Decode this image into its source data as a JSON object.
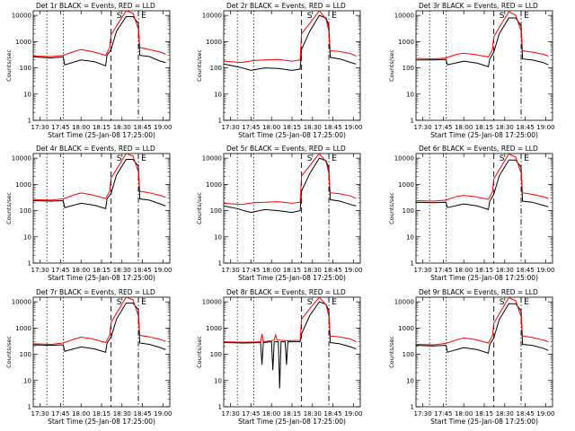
{
  "figure": {
    "type": "grid",
    "rows": 3,
    "cols": 3
  },
  "shared": {
    "xlabel": "Start Time (25-Jan-08 17:25:00)",
    "ylabel": "Counts/sec",
    "x_ticks": [
      "17:30",
      "17:45",
      "18:00",
      "18:15",
      "18:30",
      "18:45",
      "19:00"
    ],
    "y_ticks": [
      "1",
      "10",
      "100",
      "1000",
      "10000"
    ],
    "xlim": [
      "17:25",
      "19:05"
    ],
    "ylim": [
      1,
      15000
    ],
    "yscale": "log",
    "markers": [
      "S",
      "E"
    ],
    "series_colors": {
      "events": "#000000",
      "lld": "#ff0000"
    },
    "vlines": [
      {
        "time": "17:35",
        "style": "dotted"
      },
      {
        "time": "17:47",
        "style": "dotted"
      },
      {
        "time": "18:22",
        "style": "dashed"
      },
      {
        "time": "18:42",
        "style": "dashdot"
      }
    ]
  },
  "chart_data": [
    {
      "type": "line",
      "title": "Det 1r BLACK = Events, RED = LLD",
      "series": [
        {
          "label": "BLACK",
          "x": [
            "17:25",
            "17:38",
            "17:47",
            "17:48",
            "18:00",
            "18:10",
            "18:18",
            "18:19",
            "18:22",
            "18:26",
            "18:33",
            "18:38",
            "18:42",
            "18:43",
            "18:50",
            "18:58",
            "19:02"
          ],
          "y": [
            260,
            240,
            260,
            130,
            200,
            170,
            120,
            300,
            500,
            2500,
            9000,
            9000,
            5000,
            300,
            270,
            180,
            160
          ]
        },
        {
          "label": "RED",
          "x": [
            "17:25",
            "17:38",
            "17:47",
            "17:55",
            "18:00",
            "18:08",
            "18:18",
            "18:21",
            "18:22",
            "18:26",
            "18:33",
            "18:38",
            "18:42",
            "18:43",
            "18:50",
            "18:58",
            "19:02"
          ],
          "y": [
            280,
            270,
            300,
            420,
            500,
            420,
            300,
            600,
            1800,
            4000,
            15000,
            12000,
            3000,
            600,
            500,
            400,
            330
          ]
        }
      ]
    },
    {
      "type": "line",
      "title": "Det 2r BLACK = Events, RED = LLD",
      "series": [
        {
          "label": "BLACK",
          "x": [
            "17:25",
            "17:35",
            "17:40",
            "17:45",
            "17:55",
            "18:05",
            "18:15",
            "18:21",
            "18:22",
            "18:28",
            "18:35",
            "18:40",
            "18:42",
            "18:43",
            "18:50",
            "18:58",
            "19:02"
          ],
          "y": [
            140,
            110,
            95,
            80,
            100,
            95,
            80,
            90,
            500,
            2500,
            10000,
            8000,
            4000,
            250,
            220,
            160,
            140
          ]
        },
        {
          "label": "RED",
          "x": [
            "17:25",
            "17:38",
            "17:47",
            "17:55",
            "18:05",
            "18:15",
            "18:21",
            "18:22",
            "18:28",
            "18:35",
            "18:40",
            "18:42",
            "18:43",
            "18:50",
            "18:58",
            "19:02"
          ],
          "y": [
            180,
            160,
            190,
            200,
            210,
            180,
            200,
            2000,
            5000,
            15000,
            7000,
            2500,
            450,
            420,
            350,
            280
          ]
        }
      ]
    },
    {
      "type": "line",
      "title": "Det 3r BLACK = Events, RED = LLD",
      "series": [
        {
          "label": "BLACK",
          "x": [
            "17:25",
            "17:38",
            "17:47",
            "17:48",
            "18:00",
            "18:10",
            "18:18",
            "18:19",
            "18:22",
            "18:26",
            "18:33",
            "18:38",
            "18:42",
            "18:43",
            "18:50",
            "18:58",
            "19:02"
          ],
          "y": [
            200,
            200,
            210,
            130,
            180,
            150,
            110,
            220,
            400,
            2000,
            8000,
            8000,
            4000,
            220,
            200,
            160,
            130
          ]
        },
        {
          "label": "RED",
          "x": [
            "17:25",
            "17:38",
            "17:47",
            "17:55",
            "18:00",
            "18:08",
            "18:18",
            "18:21",
            "18:22",
            "18:26",
            "18:33",
            "18:38",
            "18:42",
            "18:43",
            "18:50",
            "18:58",
            "19:02"
          ],
          "y": [
            230,
            220,
            240,
            330,
            360,
            320,
            260,
            500,
            1500,
            3500,
            14000,
            10000,
            2500,
            450,
            400,
            330,
            280
          ]
        }
      ]
    },
    {
      "type": "line",
      "title": "Det 4r BLACK = Events, RED = LLD",
      "series": [
        {
          "label": "BLACK",
          "x": [
            "17:25",
            "17:38",
            "17:47",
            "17:48",
            "18:00",
            "18:10",
            "18:18",
            "18:19",
            "18:22",
            "18:26",
            "18:33",
            "18:38",
            "18:42",
            "18:43",
            "18:50",
            "18:58",
            "19:02"
          ],
          "y": [
            240,
            230,
            240,
            130,
            190,
            160,
            120,
            280,
            450,
            2300,
            9000,
            9000,
            5000,
            280,
            250,
            180,
            150
          ]
        },
        {
          "label": "RED",
          "x": [
            "17:25",
            "17:38",
            "17:47",
            "17:55",
            "18:00",
            "18:08",
            "18:18",
            "18:21",
            "18:22",
            "18:26",
            "18:33",
            "18:38",
            "18:42",
            "18:43",
            "18:50",
            "18:58",
            "19:02"
          ],
          "y": [
            260,
            250,
            280,
            400,
            470,
            400,
            290,
            550,
            1700,
            3800,
            15000,
            12000,
            3000,
            550,
            480,
            380,
            320
          ]
        }
      ]
    },
    {
      "type": "line",
      "title": "Det 5r BLACK = Events, RED = LLD",
      "series": [
        {
          "label": "BLACK",
          "x": [
            "17:25",
            "17:35",
            "17:40",
            "17:45",
            "17:55",
            "18:05",
            "18:15",
            "18:21",
            "18:22",
            "18:28",
            "18:35",
            "18:40",
            "18:42",
            "18:43",
            "18:50",
            "18:58",
            "19:02"
          ],
          "y": [
            150,
            120,
            100,
            85,
            110,
            100,
            85,
            100,
            550,
            2600,
            10000,
            8000,
            4000,
            260,
            230,
            170,
            150
          ]
        },
        {
          "label": "RED",
          "x": [
            "17:25",
            "17:38",
            "17:47",
            "17:55",
            "18:05",
            "18:15",
            "18:21",
            "18:22",
            "18:28",
            "18:35",
            "18:40",
            "18:42",
            "18:43",
            "18:50",
            "18:58",
            "19:02"
          ],
          "y": [
            190,
            170,
            200,
            210,
            220,
            190,
            210,
            2100,
            5200,
            15000,
            7200,
            2600,
            480,
            440,
            360,
            290
          ]
        }
      ]
    },
    {
      "type": "line",
      "title": "Det 6r BLACK = Events, RED = LLD",
      "series": [
        {
          "label": "BLACK",
          "x": [
            "17:25",
            "17:38",
            "17:47",
            "17:48",
            "18:00",
            "18:10",
            "18:18",
            "18:19",
            "18:22",
            "18:26",
            "18:33",
            "18:38",
            "18:42",
            "18:43",
            "18:50",
            "18:58",
            "19:02"
          ],
          "y": [
            210,
            200,
            210,
            130,
            180,
            150,
            110,
            230,
            420,
            2100,
            8500,
            8500,
            4500,
            230,
            210,
            160,
            140
          ]
        },
        {
          "label": "RED",
          "x": [
            "17:25",
            "17:38",
            "17:47",
            "17:55",
            "18:00",
            "18:08",
            "18:18",
            "18:21",
            "18:22",
            "18:26",
            "18:33",
            "18:38",
            "18:42",
            "18:43",
            "18:50",
            "18:58",
            "19:02"
          ],
          "y": [
            240,
            230,
            250,
            350,
            380,
            340,
            270,
            520,
            1600,
            3600,
            14500,
            11000,
            2700,
            480,
            420,
            340,
            290
          ]
        }
      ]
    },
    {
      "type": "line",
      "title": "Det 7r BLACK = Events, RED = LLD",
      "series": [
        {
          "label": "BLACK",
          "x": [
            "17:25",
            "17:38",
            "17:47",
            "17:48",
            "18:00",
            "18:10",
            "18:18",
            "18:19",
            "18:22",
            "18:26",
            "18:33",
            "18:38",
            "18:42",
            "18:43",
            "18:50",
            "18:58",
            "19:02"
          ],
          "y": [
            230,
            220,
            230,
            130,
            190,
            160,
            120,
            270,
            450,
            2200,
            9000,
            9000,
            5000,
            270,
            240,
            180,
            150
          ]
        },
        {
          "label": "RED",
          "x": [
            "17:25",
            "17:38",
            "17:47",
            "17:55",
            "18:00",
            "18:08",
            "18:18",
            "18:21",
            "18:22",
            "18:26",
            "18:33",
            "18:38",
            "18:42",
            "18:43",
            "18:50",
            "18:58",
            "19:02"
          ],
          "y": [
            250,
            240,
            270,
            380,
            450,
            390,
            280,
            530,
            1600,
            3700,
            15000,
            12000,
            2900,
            530,
            460,
            370,
            310
          ]
        }
      ]
    },
    {
      "type": "line",
      "title": "Det 8r BLACK = Events, RED = LLD",
      "series": [
        {
          "label": "BLACK",
          "x": [
            "17:25",
            "17:40",
            "17:52",
            "17:53",
            "17:54",
            "18:00",
            "18:01",
            "18:02",
            "18:05",
            "18:06",
            "18:07",
            "18:10",
            "18:11",
            "18:12",
            "18:21",
            "18:22",
            "18:28",
            "18:35",
            "18:40",
            "18:42",
            "18:43",
            "18:50",
            "18:58",
            "19:02"
          ],
          "y": [
            280,
            270,
            280,
            40,
            280,
            300,
            25,
            300,
            300,
            5,
            300,
            300,
            40,
            300,
            300,
            600,
            3000,
            10000,
            8000,
            4500,
            280,
            250,
            190,
            160
          ]
        },
        {
          "label": "RED",
          "x": [
            "17:25",
            "17:40",
            "17:52",
            "17:53",
            "17:54",
            "18:02",
            "18:03",
            "18:04",
            "18:12",
            "18:21",
            "18:22",
            "18:28",
            "18:35",
            "18:40",
            "18:42",
            "18:43",
            "18:50",
            "18:58",
            "19:02"
          ],
          "y": [
            300,
            290,
            300,
            600,
            300,
            350,
            550,
            350,
            330,
            340,
            2200,
            5500,
            15000,
            7500,
            2800,
            500,
            460,
            380,
            300
          ]
        }
      ]
    },
    {
      "type": "line",
      "title": "Det 9r BLACK = Events, RED = LLD",
      "series": [
        {
          "label": "BLACK",
          "x": [
            "17:25",
            "17:38",
            "17:47",
            "17:48",
            "18:00",
            "18:10",
            "18:18",
            "18:19",
            "18:22",
            "18:26",
            "18:33",
            "18:38",
            "18:42",
            "18:43",
            "18:50",
            "18:58",
            "19:02"
          ],
          "y": [
            220,
            210,
            220,
            120,
            180,
            150,
            110,
            240,
            420,
            2100,
            8500,
            8500,
            4500,
            240,
            220,
            170,
            140
          ]
        },
        {
          "label": "RED",
          "x": [
            "17:25",
            "17:38",
            "17:47",
            "17:55",
            "18:00",
            "18:08",
            "18:18",
            "18:21",
            "18:22",
            "18:26",
            "18:33",
            "18:38",
            "18:42",
            "18:43",
            "18:50",
            "18:58",
            "19:02"
          ],
          "y": [
            240,
            230,
            260,
            360,
            420,
            370,
            270,
            510,
            1500,
            3500,
            14500,
            11000,
            2700,
            500,
            440,
            350,
            300
          ]
        }
      ]
    }
  ]
}
